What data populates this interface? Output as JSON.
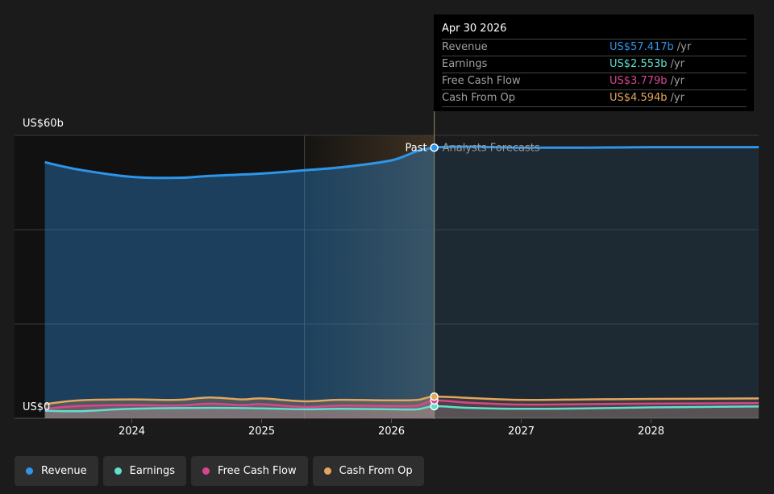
{
  "colors": {
    "revenue": "#2f95e8",
    "earnings": "#5fe0cc",
    "fcf": "#d6478e",
    "cfo": "#e3a65e",
    "background": "#1b1b1b"
  },
  "y_axis": {
    "top_label": "US$60b",
    "bottom_label": "US$0"
  },
  "divider": {
    "past_label": "Past",
    "forecast_label": "Analysts Forecasts"
  },
  "tooltip": {
    "date": "Apr 30 2026",
    "rows": [
      {
        "label": "Revenue",
        "value": "US$57.417b",
        "unit": "/yr",
        "color": "#2f95e8"
      },
      {
        "label": "Earnings",
        "value": "US$2.553b",
        "unit": "/yr",
        "color": "#5fe0cc"
      },
      {
        "label": "Free Cash Flow",
        "value": "US$3.779b",
        "unit": "/yr",
        "color": "#d6478e"
      },
      {
        "label": "Cash From Op",
        "value": "US$4.594b",
        "unit": "/yr",
        "color": "#e3a65e"
      }
    ]
  },
  "legend": [
    {
      "label": "Revenue",
      "color": "#2f95e8"
    },
    {
      "label": "Earnings",
      "color": "#5fe0cc"
    },
    {
      "label": "Free Cash Flow",
      "color": "#d6478e"
    },
    {
      "label": "Cash From Op",
      "color": "#e3a65e"
    }
  ],
  "chart_data": {
    "type": "area",
    "x_ticks": [
      "2024",
      "2025",
      "2026",
      "2027",
      "2028"
    ],
    "ylim": [
      0,
      60
    ],
    "y_unit": "US$ b",
    "divider_x": 2026.33,
    "highlight_x": [
      2025.33,
      2026.33
    ],
    "legend_position": "bottom-left",
    "series": [
      {
        "name": "Revenue",
        "color": "#2f95e8",
        "x": [
          2023.33,
          2023.6,
          2024.0,
          2024.35,
          2024.6,
          2025.0,
          2025.33,
          2025.6,
          2026.0,
          2026.33,
          2027.0,
          2027.5,
          2028.0,
          2028.83
        ],
        "y": [
          54.3,
          52.7,
          51.2,
          51.0,
          51.4,
          51.9,
          52.6,
          53.2,
          54.7,
          57.4,
          57.4,
          57.4,
          57.5,
          57.5
        ]
      },
      {
        "name": "Earnings",
        "color": "#5fe0cc",
        "x": [
          2023.33,
          2023.6,
          2024.0,
          2024.6,
          2025.0,
          2025.33,
          2025.6,
          2026.0,
          2026.2,
          2026.33,
          2026.6,
          2027.0,
          2027.5,
          2028.0,
          2028.83
        ],
        "y": [
          1.6,
          1.5,
          2.0,
          2.2,
          2.1,
          1.9,
          2.0,
          1.9,
          1.9,
          2.55,
          2.2,
          2.0,
          2.1,
          2.3,
          2.5
        ]
      },
      {
        "name": "Free Cash Flow",
        "color": "#d6478e",
        "x": [
          2023.33,
          2023.6,
          2024.0,
          2024.35,
          2024.6,
          2024.85,
          2025.0,
          2025.33,
          2025.6,
          2026.0,
          2026.2,
          2026.33,
          2026.6,
          2027.0,
          2027.5,
          2028.0,
          2028.83
        ],
        "y": [
          2.0,
          2.6,
          2.8,
          2.7,
          3.1,
          2.8,
          3.0,
          2.4,
          2.7,
          2.6,
          2.7,
          3.78,
          3.3,
          2.9,
          3.0,
          3.1,
          3.2
        ]
      },
      {
        "name": "Cash From Op",
        "color": "#e3a65e",
        "x": [
          2023.33,
          2023.6,
          2024.0,
          2024.35,
          2024.6,
          2024.85,
          2025.0,
          2025.33,
          2025.6,
          2026.0,
          2026.2,
          2026.33,
          2026.6,
          2027.0,
          2027.5,
          2028.0,
          2028.83
        ],
        "y": [
          3.0,
          3.8,
          4.0,
          3.9,
          4.4,
          4.0,
          4.2,
          3.6,
          3.9,
          3.8,
          3.9,
          4.59,
          4.3,
          3.9,
          4.0,
          4.1,
          4.2
        ]
      }
    ]
  }
}
